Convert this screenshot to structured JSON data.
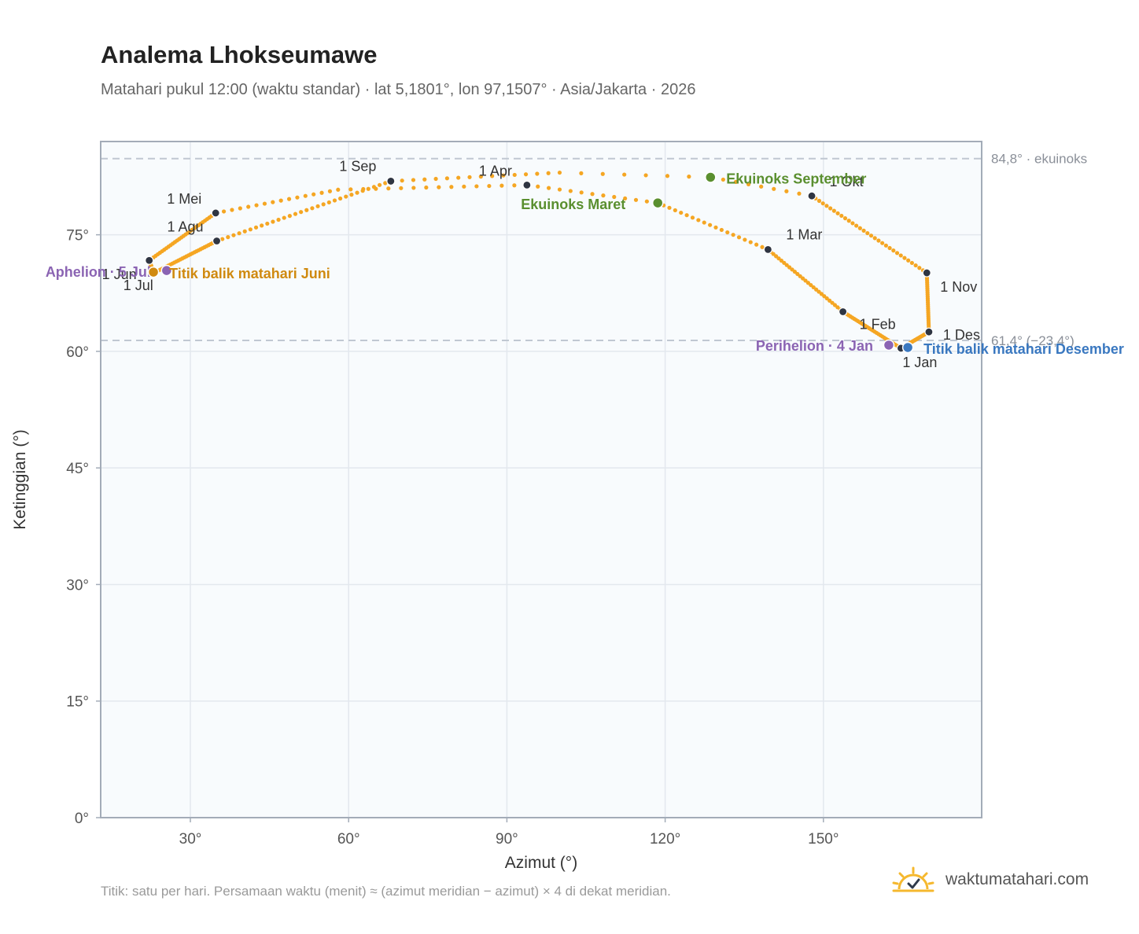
{
  "title": "Analema Lhokseumawe",
  "subtitle": "Matahari pukul 12:00 (waktu standar) · lat 5,1801°, lon 97,1507° · Asia/Jakarta · 2026",
  "footnote": "Titik: satu per hari. Persamaan waktu (menit) ≈ (azimut meridian − azimut) × 4 di dekat meridian.",
  "brand": {
    "name": "waktumatahari.com",
    "icon": "sun-check-icon"
  },
  "colors": {
    "curve": "#f5a623",
    "month_marker": "#2f3542",
    "equinox": "#5a8f2f",
    "aphelion_perihelion": "#8b64b3",
    "june_solstice": "#d08a10",
    "december_solstice": "#3a78c0",
    "reference_line": "#c0c8d2",
    "plot_background": "#f8fbfd",
    "grid": "#e3e8ee",
    "frame": "#a3acb8"
  },
  "chart_data": {
    "type": "scatter",
    "title": "Analema Lhokseumawe",
    "xlabel": "Azimut (°)",
    "ylabel": "Ketinggian (°)",
    "xlim": [
      13,
      180
    ],
    "ylim": [
      0,
      87
    ],
    "x_ticks": [
      30,
      60,
      90,
      120,
      150
    ],
    "x_tick_labels": [
      "30°",
      "60°",
      "90°",
      "120°",
      "150°"
    ],
    "y_ticks": [
      0,
      15,
      30,
      45,
      60,
      75
    ],
    "y_tick_labels": [
      "0°",
      "15°",
      "30°",
      "45°",
      "60°",
      "75°"
    ],
    "grid": true,
    "legend": "none",
    "reference_lines": [
      {
        "y": 84.8,
        "label": "84,8° · ekuinoks"
      },
      {
        "y": 61.4,
        "label": "61,4° (−23,4°)"
      }
    ],
    "month_markers": [
      {
        "label": "1 Jan",
        "azimuth": 164.7,
        "altitude": 60.4
      },
      {
        "label": "1 Feb",
        "azimuth": 153.7,
        "altitude": 65.1
      },
      {
        "label": "1 Mar",
        "azimuth": 139.5,
        "altitude": 73.1
      },
      {
        "label": "1 Apr",
        "azimuth": 93.8,
        "altitude": 81.4
      },
      {
        "label": "1 Mei",
        "azimuth": 34.8,
        "altitude": 77.8
      },
      {
        "label": "1 Jun",
        "azimuth": 22.2,
        "altitude": 71.7
      },
      {
        "label": "1 Jul",
        "azimuth": 23.1,
        "altitude": 70.1
      },
      {
        "label": "1 Agu",
        "azimuth": 35.0,
        "altitude": 74.2
      },
      {
        "label": "1 Sep",
        "azimuth": 68.0,
        "altitude": 81.9
      },
      {
        "label": "1 Okt",
        "azimuth": 147.8,
        "altitude": 80.0
      },
      {
        "label": "1 Nov",
        "azimuth": 169.6,
        "altitude": 70.1
      },
      {
        "label": "1 Des",
        "azimuth": 170.0,
        "altitude": 62.5
      }
    ],
    "events": [
      {
        "label": "Ekuinoks Maret",
        "azimuth": 118.6,
        "altitude": 79.1,
        "kind": "equinox"
      },
      {
        "label": "Ekuinoks September",
        "azimuth": 128.6,
        "altitude": 82.4,
        "kind": "equinox"
      },
      {
        "label": "Aphelion · 5 Jul",
        "azimuth": 25.5,
        "altitude": 70.4,
        "kind": "apsis"
      },
      {
        "label": "Perihelion · 4 Jan",
        "azimuth": 162.4,
        "altitude": 60.8,
        "kind": "apsis"
      },
      {
        "label": "Titik balik matahari Juni",
        "azimuth": 23.0,
        "altitude": 70.2,
        "kind": "june_solstice"
      },
      {
        "label": "Titik balik matahari Desember",
        "azimuth": 166.0,
        "altitude": 60.5,
        "kind": "december_solstice"
      }
    ],
    "path_nodes": [
      {
        "azimuth": 164.7,
        "altitude": 60.4,
        "doy": 0
      },
      {
        "azimuth": 153.7,
        "altitude": 65.1,
        "doy": 31
      },
      {
        "azimuth": 139.5,
        "altitude": 73.1,
        "doy": 59
      },
      {
        "azimuth": 118.6,
        "altitude": 79.1,
        "doy": 78
      },
      {
        "azimuth": 93.8,
        "altitude": 81.4,
        "doy": 90
      },
      {
        "azimuth": 58.0,
        "altitude": 80.8,
        "doy": 105
      },
      {
        "azimuth": 34.8,
        "altitude": 77.8,
        "doy": 120
      },
      {
        "azimuth": 22.2,
        "altitude": 71.7,
        "doy": 151
      },
      {
        "azimuth": 23.0,
        "altitude": 70.2,
        "doy": 171
      },
      {
        "azimuth": 23.1,
        "altitude": 70.1,
        "doy": 181
      },
      {
        "azimuth": 35.0,
        "altitude": 74.2,
        "doy": 212
      },
      {
        "azimuth": 68.0,
        "altitude": 81.9,
        "doy": 243
      },
      {
        "azimuth": 100.0,
        "altitude": 83.0,
        "doy": 258
      },
      {
        "azimuth": 128.6,
        "altitude": 82.4,
        "doy": 265
      },
      {
        "azimuth": 147.8,
        "altitude": 80.0,
        "doy": 273
      },
      {
        "azimuth": 169.6,
        "altitude": 70.1,
        "doy": 304
      },
      {
        "azimuth": 170.0,
        "altitude": 62.5,
        "doy": 334
      },
      {
        "azimuth": 164.7,
        "altitude": 60.4,
        "doy": 365
      }
    ]
  }
}
